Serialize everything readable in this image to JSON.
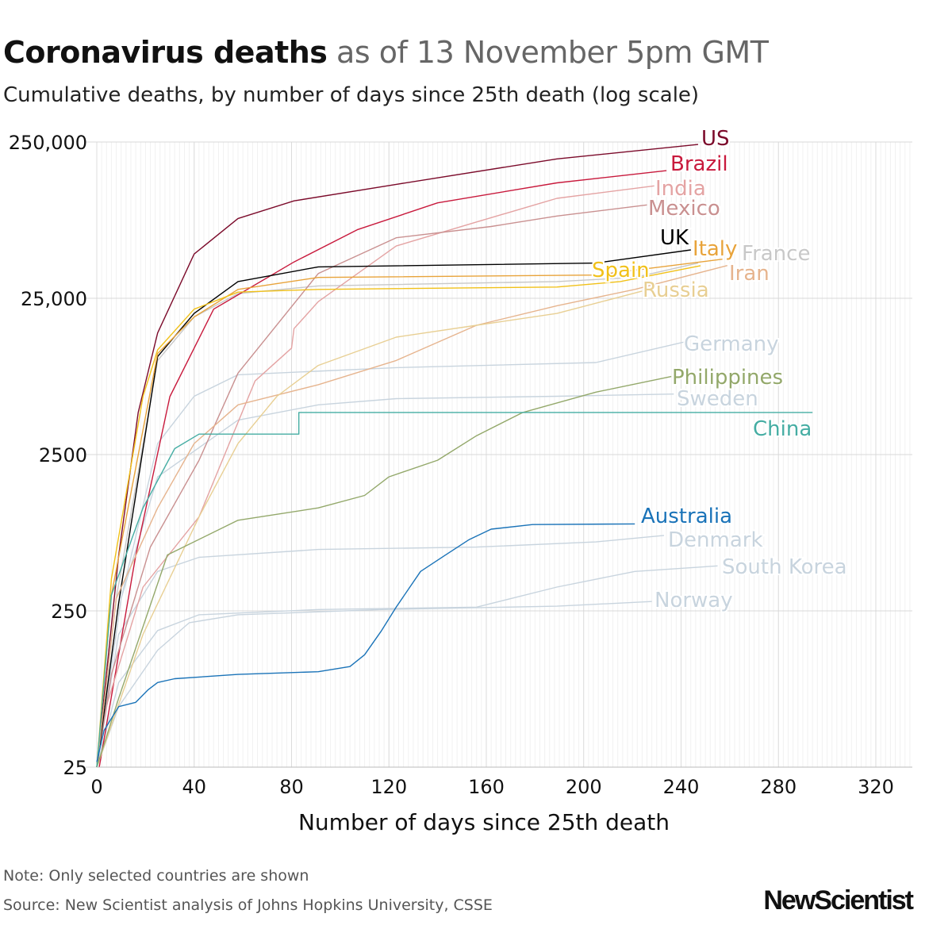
{
  "header": {
    "title_bold": "Coronavirus deaths",
    "title_rest": "as of 13 November 5pm GMT",
    "subtitle": "Cumulative deaths, by number of days since 25th death (log scale)"
  },
  "footer": {
    "note": "Note: Only selected countries are shown",
    "source": "Source: New Scientist analysis of Johns Hopkins University, CSSE",
    "logo": "NewScientist"
  },
  "chart_data": {
    "type": "line",
    "title": "Coronavirus deaths as of 13 November 5pm GMT",
    "subtitle": "Cumulative deaths, by number of days since 25th death (log scale)",
    "xlabel": "Number of days since 25th death",
    "ylabel": "",
    "xlim": [
      0,
      335
    ],
    "ylim": [
      25,
      250000
    ],
    "yscale": "log",
    "grid": true,
    "x_ticks": [
      0,
      40,
      80,
      120,
      160,
      200,
      240,
      280,
      320
    ],
    "y_ticks": [
      25,
      250,
      2500,
      25000,
      250000
    ],
    "y_tick_labels": [
      "25",
      "250",
      "2500",
      "25,000",
      "250,000"
    ],
    "series": [
      {
        "name": "US",
        "color": "#7b0a2a",
        "points": [
          [
            0,
            25
          ],
          [
            9,
            566
          ],
          [
            17,
            4650
          ],
          [
            25,
            15000
          ],
          [
            40,
            48000
          ],
          [
            58,
            81000
          ],
          [
            81,
            105000
          ],
          [
            123,
            134000
          ],
          [
            189,
            195000
          ],
          [
            247,
            241000
          ]
        ]
      },
      {
        "name": "Brazil",
        "color": "#c8193c",
        "points": [
          [
            1,
            25
          ],
          [
            16,
            566
          ],
          [
            30,
            5870
          ],
          [
            48,
            21300
          ],
          [
            81,
            42700
          ],
          [
            107,
            68600
          ],
          [
            140,
            102000
          ],
          [
            189,
            137000
          ],
          [
            234,
            164000
          ]
        ]
      },
      {
        "name": "India",
        "color": "#e4a3a3",
        "points": [
          [
            0,
            25
          ],
          [
            3,
            55
          ],
          [
            19,
            355
          ],
          [
            42,
            1000
          ],
          [
            65,
            7400
          ],
          [
            80,
            12000
          ],
          [
            81,
            16000
          ],
          [
            91,
            23800
          ],
          [
            123,
            54000
          ],
          [
            156,
            77000
          ],
          [
            189,
            109000
          ],
          [
            229,
            131000
          ]
        ]
      },
      {
        "name": "Mexico",
        "color": "#c99090",
        "points": [
          [
            0,
            25
          ],
          [
            6,
            98
          ],
          [
            22,
            640
          ],
          [
            42,
            2300
          ],
          [
            58,
            8300
          ],
          [
            91,
            36000
          ],
          [
            123,
            61000
          ],
          [
            162,
            72000
          ],
          [
            189,
            84000
          ],
          [
            226,
            99000
          ]
        ]
      },
      {
        "name": "UK",
        "color": "#000000",
        "points": [
          [
            0,
            25
          ],
          [
            9,
            281
          ],
          [
            25,
            10600
          ],
          [
            40,
            20000
          ],
          [
            58,
            32000
          ],
          [
            91,
            39700
          ],
          [
            205,
            42000
          ],
          [
            244,
            51000
          ]
        ]
      },
      {
        "name": "Italy",
        "color": "#e8a33a",
        "points": [
          [
            0,
            25
          ],
          [
            6,
            315
          ],
          [
            25,
            11100
          ],
          [
            40,
            19000
          ],
          [
            58,
            28500
          ],
          [
            91,
            34000
          ],
          [
            205,
            35200
          ],
          [
            257,
            44500
          ]
        ]
      },
      {
        "name": "France",
        "color": "#c8c8c8",
        "points": [
          [
            0,
            25
          ],
          [
            8,
            300
          ],
          [
            25,
            10000
          ],
          [
            40,
            19000
          ],
          [
            58,
            26800
          ],
          [
            91,
            30000
          ],
          [
            189,
            32000
          ],
          [
            221,
            34000
          ],
          [
            247,
            42000
          ]
        ]
      },
      {
        "name": "Spain",
        "color": "#f1c119",
        "points": [
          [
            0,
            25
          ],
          [
            6,
            400
          ],
          [
            19,
            5900
          ],
          [
            25,
            11700
          ],
          [
            40,
            21300
          ],
          [
            58,
            27400
          ],
          [
            91,
            28500
          ],
          [
            189,
            29500
          ],
          [
            215,
            32000
          ],
          [
            248,
            40400
          ]
        ]
      },
      {
        "name": "Iran",
        "color": "#e6b48e",
        "points": [
          [
            0,
            25
          ],
          [
            8,
            300
          ],
          [
            25,
            1140
          ],
          [
            40,
            2940
          ],
          [
            58,
            5200
          ],
          [
            91,
            7000
          ],
          [
            123,
            10000
          ],
          [
            156,
            16800
          ],
          [
            189,
            22400
          ],
          [
            221,
            28500
          ],
          [
            259,
            40500
          ]
        ]
      },
      {
        "name": "Russia",
        "color": "#e8cf93",
        "points": [
          [
            0,
            25
          ],
          [
            19,
            177
          ],
          [
            42,
            1000
          ],
          [
            58,
            2940
          ],
          [
            74,
            5900
          ],
          [
            91,
            9300
          ],
          [
            123,
            14100
          ],
          [
            156,
            16800
          ],
          [
            189,
            20000
          ],
          [
            224,
            27800
          ]
        ]
      },
      {
        "name": "Germany",
        "color": "#c8d4de",
        "points": [
          [
            0,
            25
          ],
          [
            10,
            300
          ],
          [
            25,
            2940
          ],
          [
            40,
            5900
          ],
          [
            58,
            8100
          ],
          [
            123,
            9000
          ],
          [
            205,
            9700
          ],
          [
            241,
            13100
          ]
        ]
      },
      {
        "name": "Philippines",
        "color": "#93a86a",
        "points": [
          [
            0,
            25
          ],
          [
            9,
            69
          ],
          [
            29,
            570
          ],
          [
            58,
            950
          ],
          [
            91,
            1140
          ],
          [
            110,
            1370
          ],
          [
            120,
            1800
          ],
          [
            140,
            2300
          ],
          [
            156,
            3300
          ],
          [
            175,
            4650
          ],
          [
            205,
            6270
          ],
          [
            236,
            7900
          ]
        ]
      },
      {
        "name": "Sweden",
        "color": "#c8d4de",
        "points": [
          [
            0,
            25
          ],
          [
            10,
            300
          ],
          [
            25,
            1800
          ],
          [
            58,
            4150
          ],
          [
            91,
            5200
          ],
          [
            123,
            5700
          ],
          [
            189,
            5900
          ],
          [
            237,
            6100
          ]
        ]
      },
      {
        "name": "China",
        "color": "#45ada3",
        "points": [
          [
            0,
            25
          ],
          [
            6,
            315
          ],
          [
            19,
            1140
          ],
          [
            32,
            2730
          ],
          [
            42,
            3380
          ],
          [
            83,
            3380
          ],
          [
            83,
            4650
          ],
          [
            294,
            4650
          ]
        ]
      },
      {
        "name": "Australia",
        "color": "#1a73b8",
        "points": [
          [
            0,
            27
          ],
          [
            3,
            43
          ],
          [
            9,
            61
          ],
          [
            16,
            65
          ],
          [
            21,
            78
          ],
          [
            25,
            87
          ],
          [
            32,
            92
          ],
          [
            58,
            98
          ],
          [
            91,
            102
          ],
          [
            104,
            110
          ],
          [
            110,
            131
          ],
          [
            117,
            187
          ],
          [
            123,
            264
          ],
          [
            133,
            447
          ],
          [
            143,
            566
          ],
          [
            153,
            715
          ],
          [
            162,
            833
          ],
          [
            179,
            892
          ],
          [
            221,
            900
          ]
        ]
      },
      {
        "name": "Denmark",
        "color": "#c8d4de",
        "points": [
          [
            0,
            25
          ],
          [
            9,
            177
          ],
          [
            25,
            447
          ],
          [
            42,
            550
          ],
          [
            91,
            618
          ],
          [
            156,
            640
          ],
          [
            205,
            690
          ],
          [
            233,
            760
          ]
        ]
      },
      {
        "name": "South Korea",
        "color": "#c8d4de",
        "points": [
          [
            0,
            25
          ],
          [
            9,
            87
          ],
          [
            25,
            187
          ],
          [
            42,
            236
          ],
          [
            91,
            255
          ],
          [
            156,
            264
          ],
          [
            189,
            355
          ],
          [
            221,
            447
          ],
          [
            255,
            485
          ]
        ]
      },
      {
        "name": "Norway",
        "color": "#c8d4de",
        "points": [
          [
            0,
            25
          ],
          [
            9,
            61
          ],
          [
            25,
            140
          ],
          [
            38,
            210
          ],
          [
            58,
            236
          ],
          [
            117,
            255
          ],
          [
            189,
            268
          ],
          [
            228,
            287
          ]
        ]
      }
    ]
  }
}
